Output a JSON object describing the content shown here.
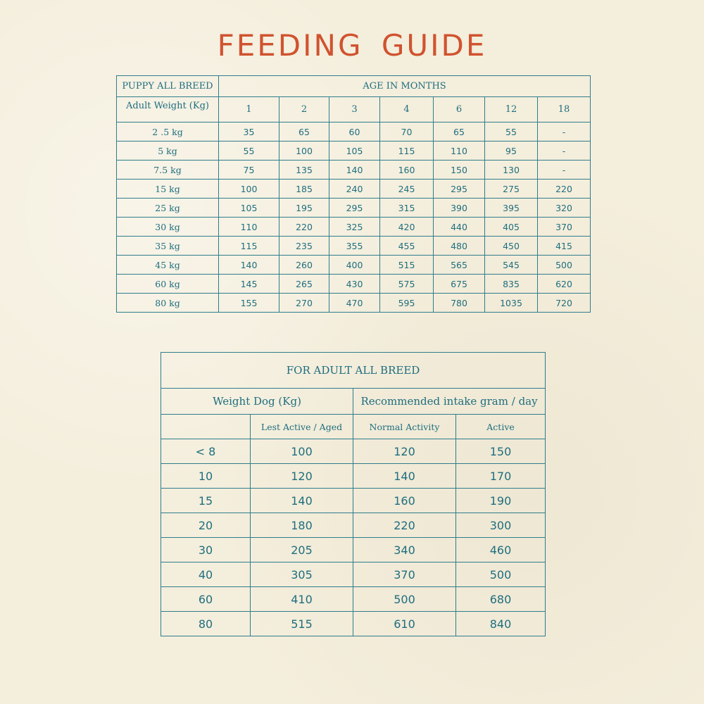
{
  "title": "FEEDING GUIDE",
  "puppy_table": {
    "corner_label": "PUPPY ALL BREED",
    "age_header": "AGE IN MONTHS",
    "weight_header": "Adult Weight (Kg)",
    "months": [
      "1",
      "2",
      "3",
      "4",
      "6",
      "12",
      "18"
    ],
    "rows": [
      {
        "weight": "2 .5 kg",
        "values": [
          "35",
          "65",
          "60",
          "70",
          "65",
          "55",
          "-"
        ]
      },
      {
        "weight": "5 kg",
        "values": [
          "55",
          "100",
          "105",
          "115",
          "110",
          "95",
          "-"
        ]
      },
      {
        "weight": "7.5 kg",
        "values": [
          "75",
          "135",
          "140",
          "160",
          "150",
          "130",
          "-"
        ]
      },
      {
        "weight": "15 kg",
        "values": [
          "100",
          "185",
          "240",
          "245",
          "295",
          "275",
          "220"
        ]
      },
      {
        "weight": "25 kg",
        "values": [
          "105",
          "195",
          "295",
          "315",
          "390",
          "395",
          "320"
        ]
      },
      {
        "weight": "30 kg",
        "values": [
          "110",
          "220",
          "325",
          "420",
          "440",
          "405",
          "370"
        ]
      },
      {
        "weight": "35 kg",
        "values": [
          "115",
          "235",
          "355",
          "455",
          "480",
          "450",
          "415"
        ]
      },
      {
        "weight": "45 kg",
        "values": [
          "140",
          "260",
          "400",
          "515",
          "565",
          "545",
          "500"
        ]
      },
      {
        "weight": "60 kg",
        "values": [
          "145",
          "265",
          "430",
          "575",
          "675",
          "835",
          "620"
        ]
      },
      {
        "weight": "80 kg",
        "values": [
          "155",
          "270",
          "470",
          "595",
          "780",
          "1035",
          "720"
        ]
      }
    ]
  },
  "adult_table": {
    "title": "FOR ADULT ALL BREED",
    "weight_group": "Weight Dog (Kg)",
    "intake_group": "Recommended intake gram / day",
    "sub_headers": [
      "",
      "Lest Active / Aged",
      "Normal Activity",
      "Active"
    ],
    "rows": [
      [
        "< 8",
        "100",
        "120",
        "150"
      ],
      [
        "10",
        "120",
        "140",
        "170"
      ],
      [
        "15",
        "140",
        "160",
        "190"
      ],
      [
        "20",
        "180",
        "220",
        "300"
      ],
      [
        "30",
        "205",
        "340",
        "460"
      ],
      [
        "40",
        "305",
        "370",
        "500"
      ],
      [
        "60",
        "410",
        "500",
        "680"
      ],
      [
        "80",
        "515",
        "610",
        "840"
      ]
    ]
  },
  "colors": {
    "background": "#f4eedc",
    "title": "#d0532f",
    "table": "#1e6e7e"
  }
}
